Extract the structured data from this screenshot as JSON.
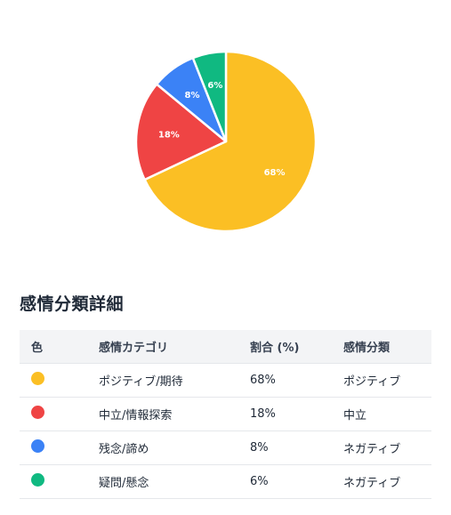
{
  "chart_data": {
    "type": "pie",
    "categories": [
      "ポジティブ/期待",
      "中立/情報探索",
      "残念/諦め",
      "疑問/懸念"
    ],
    "values": [
      68,
      18,
      8,
      6
    ],
    "colors": [
      "#fbbf24",
      "#ef4444",
      "#3b82f6",
      "#10b981"
    ],
    "data_labels": [
      "68%",
      "18%",
      "8%",
      "6%"
    ]
  },
  "table": {
    "title": "感情分類詳細",
    "headers": [
      "色",
      "感情カテゴリ",
      "割合 (%)",
      "感情分類"
    ],
    "rows": [
      {
        "color": "#fbbf24",
        "category": "ポジティブ/期待",
        "percent": "68%",
        "classification": "ポジティブ"
      },
      {
        "color": "#ef4444",
        "category": "中立/情報探索",
        "percent": "18%",
        "classification": "中立"
      },
      {
        "color": "#3b82f6",
        "category": "残念/諦め",
        "percent": "8%",
        "classification": "ネガティブ"
      },
      {
        "color": "#10b981",
        "category": "疑問/懸念",
        "percent": "6%",
        "classification": "ネガティブ"
      }
    ]
  }
}
